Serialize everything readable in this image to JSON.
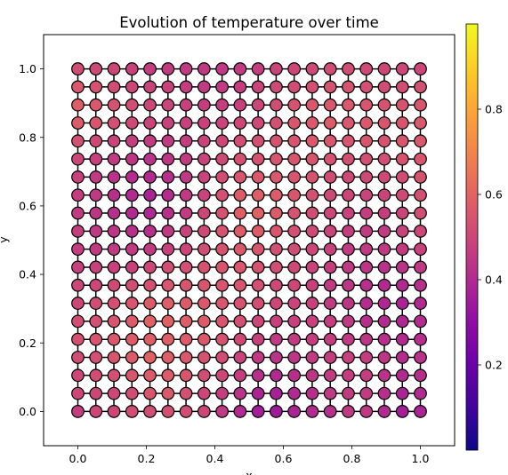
{
  "chart_data": {
    "type": "scatter",
    "subtype": "grid-graph",
    "title": "Evolution of temperature over time",
    "xlabel": "x",
    "ylabel": "y",
    "xlim": [
      -0.1,
      1.1
    ],
    "ylim": [
      -0.1,
      1.1
    ],
    "xticks": [
      "0.0",
      "0.2",
      "0.4",
      "0.6",
      "0.8",
      "1.0"
    ],
    "yticks": [
      "0.0",
      "0.2",
      "0.4",
      "0.6",
      "0.8",
      "1.0"
    ],
    "grid": false,
    "grid_nodes": 20,
    "edges": "4-neighbour lattice",
    "colormap": "plasma",
    "colorbar": {
      "min": 0.0,
      "max": 1.0,
      "ticks": [
        "0.2",
        "0.4",
        "0.6",
        "0.8"
      ]
    },
    "temperature_grid": [
      [
        0.47,
        0.5,
        0.5,
        0.52,
        0.52,
        0.53,
        0.52,
        0.5,
        0.45,
        0.4,
        0.36,
        0.35,
        0.38,
        0.4,
        0.42,
        0.45,
        0.45,
        0.4,
        0.36,
        0.38
      ],
      [
        0.5,
        0.5,
        0.5,
        0.52,
        0.55,
        0.56,
        0.53,
        0.5,
        0.47,
        0.43,
        0.38,
        0.37,
        0.4,
        0.42,
        0.45,
        0.46,
        0.46,
        0.42,
        0.38,
        0.4
      ],
      [
        0.5,
        0.52,
        0.53,
        0.55,
        0.57,
        0.57,
        0.55,
        0.52,
        0.5,
        0.47,
        0.42,
        0.4,
        0.42,
        0.44,
        0.46,
        0.47,
        0.47,
        0.43,
        0.4,
        0.42
      ],
      [
        0.52,
        0.53,
        0.55,
        0.57,
        0.59,
        0.58,
        0.56,
        0.54,
        0.52,
        0.49,
        0.45,
        0.43,
        0.44,
        0.46,
        0.47,
        0.48,
        0.47,
        0.44,
        0.41,
        0.43
      ],
      [
        0.53,
        0.55,
        0.56,
        0.57,
        0.58,
        0.58,
        0.57,
        0.56,
        0.54,
        0.51,
        0.48,
        0.46,
        0.46,
        0.47,
        0.47,
        0.46,
        0.44,
        0.42,
        0.4,
        0.42
      ],
      [
        0.52,
        0.53,
        0.55,
        0.57,
        0.59,
        0.59,
        0.58,
        0.57,
        0.55,
        0.53,
        0.5,
        0.48,
        0.48,
        0.48,
        0.47,
        0.45,
        0.42,
        0.4,
        0.39,
        0.41
      ],
      [
        0.5,
        0.52,
        0.53,
        0.55,
        0.57,
        0.58,
        0.57,
        0.56,
        0.55,
        0.54,
        0.52,
        0.5,
        0.49,
        0.48,
        0.46,
        0.44,
        0.41,
        0.39,
        0.38,
        0.4
      ],
      [
        0.5,
        0.5,
        0.51,
        0.52,
        0.53,
        0.55,
        0.55,
        0.55,
        0.55,
        0.55,
        0.53,
        0.51,
        0.5,
        0.48,
        0.46,
        0.44,
        0.42,
        0.4,
        0.4,
        0.42
      ],
      [
        0.48,
        0.48,
        0.48,
        0.48,
        0.5,
        0.52,
        0.53,
        0.54,
        0.55,
        0.56,
        0.54,
        0.52,
        0.51,
        0.49,
        0.47,
        0.45,
        0.44,
        0.43,
        0.43,
        0.45
      ],
      [
        0.47,
        0.46,
        0.46,
        0.45,
        0.46,
        0.48,
        0.5,
        0.52,
        0.54,
        0.56,
        0.55,
        0.53,
        0.52,
        0.5,
        0.48,
        0.46,
        0.45,
        0.45,
        0.46,
        0.48
      ],
      [
        0.47,
        0.45,
        0.44,
        0.42,
        0.42,
        0.45,
        0.48,
        0.51,
        0.54,
        0.57,
        0.57,
        0.55,
        0.53,
        0.51,
        0.49,
        0.47,
        0.46,
        0.46,
        0.48,
        0.5
      ],
      [
        0.46,
        0.44,
        0.42,
        0.4,
        0.39,
        0.42,
        0.46,
        0.5,
        0.54,
        0.58,
        0.59,
        0.57,
        0.54,
        0.52,
        0.5,
        0.48,
        0.47,
        0.47,
        0.49,
        0.52
      ],
      [
        0.47,
        0.45,
        0.42,
        0.4,
        0.38,
        0.41,
        0.45,
        0.49,
        0.53,
        0.57,
        0.58,
        0.57,
        0.55,
        0.53,
        0.51,
        0.5,
        0.49,
        0.49,
        0.51,
        0.53
      ],
      [
        0.48,
        0.46,
        0.43,
        0.41,
        0.4,
        0.42,
        0.45,
        0.49,
        0.52,
        0.55,
        0.56,
        0.56,
        0.55,
        0.54,
        0.52,
        0.51,
        0.51,
        0.51,
        0.52,
        0.54
      ],
      [
        0.5,
        0.48,
        0.46,
        0.44,
        0.43,
        0.44,
        0.46,
        0.49,
        0.51,
        0.53,
        0.54,
        0.55,
        0.55,
        0.55,
        0.54,
        0.53,
        0.53,
        0.53,
        0.54,
        0.55
      ],
      [
        0.53,
        0.51,
        0.49,
        0.47,
        0.46,
        0.46,
        0.47,
        0.49,
        0.5,
        0.52,
        0.53,
        0.54,
        0.55,
        0.56,
        0.55,
        0.55,
        0.55,
        0.54,
        0.55,
        0.56
      ],
      [
        0.57,
        0.55,
        0.53,
        0.51,
        0.49,
        0.48,
        0.48,
        0.48,
        0.49,
        0.5,
        0.51,
        0.53,
        0.55,
        0.56,
        0.57,
        0.56,
        0.56,
        0.55,
        0.55,
        0.56
      ],
      [
        0.58,
        0.56,
        0.54,
        0.52,
        0.5,
        0.49,
        0.48,
        0.47,
        0.47,
        0.48,
        0.5,
        0.52,
        0.54,
        0.56,
        0.56,
        0.56,
        0.55,
        0.54,
        0.54,
        0.55
      ],
      [
        0.56,
        0.54,
        0.52,
        0.5,
        0.49,
        0.48,
        0.47,
        0.46,
        0.46,
        0.47,
        0.49,
        0.51,
        0.52,
        0.53,
        0.54,
        0.54,
        0.53,
        0.52,
        0.52,
        0.53
      ],
      [
        0.52,
        0.51,
        0.5,
        0.48,
        0.47,
        0.46,
        0.46,
        0.45,
        0.45,
        0.46,
        0.47,
        0.49,
        0.5,
        0.51,
        0.52,
        0.52,
        0.51,
        0.5,
        0.5,
        0.5
      ]
    ],
    "temperature_grid_orientation": "rows from y=0.0 (first) to y=1.0 (last), columns from x=0.0 to x=1.0"
  }
}
